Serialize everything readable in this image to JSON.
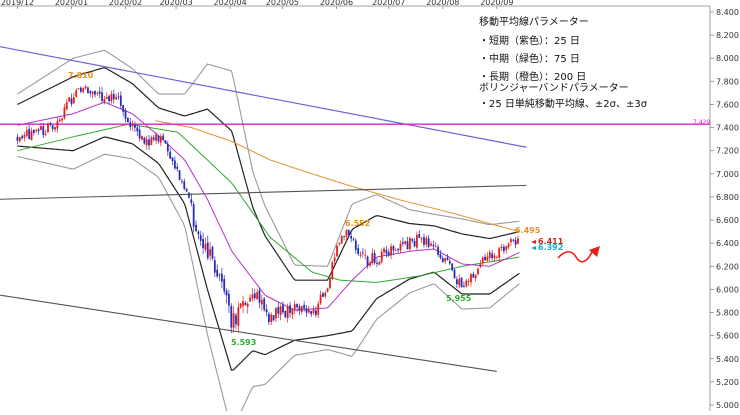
{
  "legend": {
    "title_ma": "移動平均線パラメーター",
    "ma_short": "・短期（紫色）：25 日",
    "ma_mid": "・中期（緑色）：75 日",
    "ma_long": "・長期（橙色）：200 日",
    "title_bb": "ボリンジャーバンドパラメーター",
    "bb_line": "・25 日単純移動平均線、±2σ、±3σ"
  },
  "colors": {
    "up_candle": "#e0201a",
    "down_candle": "#2b2bb8",
    "ma_short": "#b033c8",
    "ma_mid": "#2faa2f",
    "ma_long": "#e8902a",
    "bb_2sigma": "#222222",
    "bb_3sigma": "#9a9a9a",
    "upper_trend": "#7060d8",
    "horizontal_line": "#e020c8",
    "mid_trend": "#555555",
    "lower_trend": "#555555",
    "forecast_arrow": "#e8201a"
  },
  "chart_data": {
    "type": "candlestick",
    "x_tick_labels": [
      "2019/12",
      "2020/01",
      "2020/02",
      "2020/03",
      "2020/04",
      "2020/05",
      "2020/06",
      "2020/07",
      "2020/08",
      "2020/09"
    ],
    "y_tick_labels": [
      "5.000",
      "5.200",
      "5.400",
      "5.600",
      "5.800",
      "6.000",
      "6.200",
      "6.400",
      "6.600",
      "6.800",
      "7.000",
      "7.200",
      "7.400",
      "7.600",
      "7.800",
      "8.000",
      "8.200",
      "8.400"
    ],
    "ylim": [
      5.0,
      8.4
    ],
    "grid": false,
    "horizontal_line": {
      "value": 7.429,
      "label": "7.429"
    },
    "annotations": {
      "peak_high": {
        "label": "7.810",
        "value": 7.81,
        "date": "2020-01-08"
      },
      "trough_low": {
        "label": "5.593",
        "value": 5.593,
        "date": "2020-04-02"
      },
      "june_high": {
        "label": "6.552",
        "value": 6.552,
        "date": "2020-06-08"
      },
      "aug_low": {
        "label": "5.955",
        "value": 5.955,
        "date": "2020-08-12"
      },
      "sept_high": {
        "label": "6.495",
        "value": 6.495,
        "date": "2020-09-10"
      },
      "last_price": {
        "label": "6.411",
        "value": 6.411
      },
      "last_ma": {
        "label": "6.392",
        "value": 6.392
      }
    },
    "anchors": {
      "price": [
        [
          "2019-12-01",
          7.32
        ],
        [
          "2019-12-12",
          7.35
        ],
        [
          "2019-12-25",
          7.45
        ],
        [
          "2020-01-02",
          7.68
        ],
        [
          "2020-01-08",
          7.74
        ],
        [
          "2020-01-15",
          7.7
        ],
        [
          "2020-01-28",
          7.64
        ],
        [
          "2020-02-05",
          7.38
        ],
        [
          "2020-02-12",
          7.28
        ],
        [
          "2020-02-22",
          7.3
        ],
        [
          "2020-02-28",
          7.1
        ],
        [
          "2020-03-06",
          6.92
        ],
        [
          "2020-03-12",
          6.55
        ],
        [
          "2020-03-19",
          6.3
        ],
        [
          "2020-03-26",
          6.15
        ],
        [
          "2020-04-02",
          5.72
        ],
        [
          "2020-04-14",
          5.98
        ],
        [
          "2020-04-24",
          5.76
        ],
        [
          "2020-05-08",
          5.84
        ],
        [
          "2020-05-20",
          5.82
        ],
        [
          "2020-05-27",
          6.05
        ],
        [
          "2020-06-03",
          6.45
        ],
        [
          "2020-06-08",
          6.5
        ],
        [
          "2020-06-15",
          6.25
        ],
        [
          "2020-06-24",
          6.27
        ],
        [
          "2020-07-06",
          6.36
        ],
        [
          "2020-07-20",
          6.44
        ],
        [
          "2020-07-27",
          6.38
        ],
        [
          "2020-08-04",
          6.2
        ],
        [
          "2020-08-12",
          6.02
        ],
        [
          "2020-08-21",
          6.2
        ],
        [
          "2020-08-31",
          6.32
        ],
        [
          "2020-09-07",
          6.38
        ],
        [
          "2020-09-14",
          6.42
        ]
      ],
      "ma_short": [
        [
          "2019-12-01",
          7.42
        ],
        [
          "2020-01-02",
          7.52
        ],
        [
          "2020-01-20",
          7.62
        ],
        [
          "2020-02-05",
          7.52
        ],
        [
          "2020-02-20",
          7.33
        ],
        [
          "2020-03-06",
          7.12
        ],
        [
          "2020-03-19",
          6.78
        ],
        [
          "2020-04-02",
          6.33
        ],
        [
          "2020-04-21",
          5.95
        ],
        [
          "2020-05-08",
          5.82
        ],
        [
          "2020-05-27",
          5.84
        ],
        [
          "2020-06-10",
          6.08
        ],
        [
          "2020-06-24",
          6.28
        ],
        [
          "2020-07-13",
          6.33
        ],
        [
          "2020-07-27",
          6.35
        ],
        [
          "2020-08-12",
          6.22
        ],
        [
          "2020-08-28",
          6.2
        ],
        [
          "2020-09-14",
          6.32
        ]
      ],
      "ma_mid": [
        [
          "2019-12-01",
          7.2
        ],
        [
          "2020-01-02",
          7.32
        ],
        [
          "2020-02-03",
          7.43
        ],
        [
          "2020-03-02",
          7.36
        ],
        [
          "2020-03-19",
          7.12
        ],
        [
          "2020-04-02",
          6.92
        ],
        [
          "2020-04-24",
          6.45
        ],
        [
          "2020-05-18",
          6.15
        ],
        [
          "2020-06-03",
          6.08
        ],
        [
          "2020-06-24",
          6.06
        ],
        [
          "2020-07-20",
          6.12
        ],
        [
          "2020-08-12",
          6.2
        ],
        [
          "2020-09-14",
          6.28
        ]
      ],
      "ma_long": [
        [
          "2020-02-18",
          7.46
        ],
        [
          "2020-03-10",
          7.4
        ],
        [
          "2020-04-02",
          7.28
        ],
        [
          "2020-04-24",
          7.12
        ],
        [
          "2020-05-18",
          7.0
        ],
        [
          "2020-06-08",
          6.9
        ],
        [
          "2020-07-06",
          6.78
        ],
        [
          "2020-08-04",
          6.67
        ],
        [
          "2020-08-28",
          6.57
        ],
        [
          "2020-09-14",
          6.5
        ]
      ],
      "bb_width_2sigma": [
        [
          "2019-12-01",
          0.18
        ],
        [
          "2020-01-02",
          0.32
        ],
        [
          "2020-01-20",
          0.3
        ],
        [
          "2020-02-05",
          0.26
        ],
        [
          "2020-02-20",
          0.24
        ],
        [
          "2020-03-06",
          0.38
        ],
        [
          "2020-03-19",
          0.78
        ],
        [
          "2020-04-02",
          1.04
        ],
        [
          "2020-04-14",
          0.62
        ],
        [
          "2020-05-08",
          0.26
        ],
        [
          "2020-05-27",
          0.24
        ],
        [
          "2020-06-10",
          0.44
        ],
        [
          "2020-06-24",
          0.36
        ],
        [
          "2020-07-13",
          0.24
        ],
        [
          "2020-07-27",
          0.2
        ],
        [
          "2020-08-12",
          0.26
        ],
        [
          "2020-08-28",
          0.24
        ],
        [
          "2020-09-14",
          0.18
        ]
      ]
    },
    "trend_lines": {
      "upper": [
        [
          "2019-11-21",
          8.1
        ],
        [
          "2020-09-18",
          7.23
        ]
      ],
      "mid": [
        [
          "2019-11-21",
          6.78
        ],
        [
          "2020-09-18",
          6.9
        ]
      ],
      "lower": [
        [
          "2019-11-21",
          5.95
        ],
        [
          "2020-09-01",
          5.29
        ]
      ]
    }
  }
}
